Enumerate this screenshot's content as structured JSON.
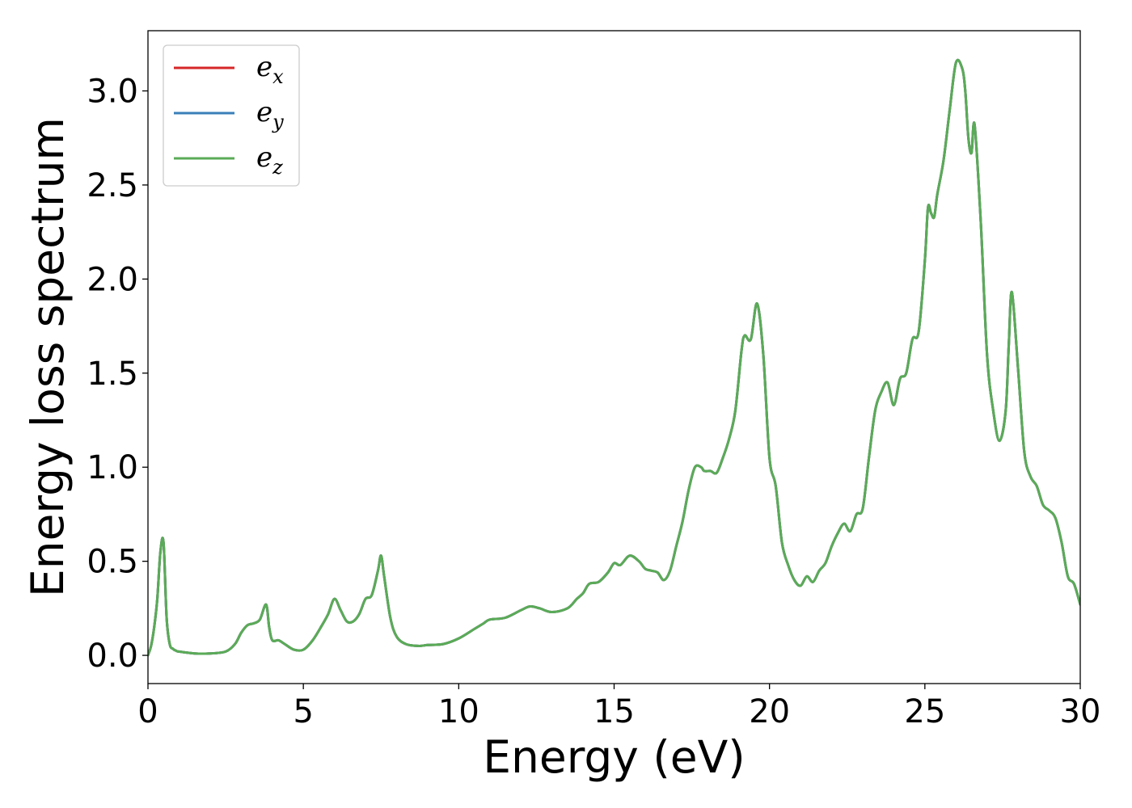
{
  "chart_data": {
    "type": "line",
    "xlabel": "Energy (eV)",
    "ylabel": "Energy loss spectrum",
    "xlim": [
      0,
      30
    ],
    "ylim": [
      -0.15,
      3.32
    ],
    "xticks": [
      0,
      5,
      10,
      15,
      20,
      25,
      30
    ],
    "xtick_labels": [
      "0",
      "5",
      "10",
      "15",
      "20",
      "25",
      "30"
    ],
    "yticks": [
      0.0,
      0.5,
      1.0,
      1.5,
      2.0,
      2.5,
      3.0
    ],
    "ytick_labels": [
      "0.0",
      "0.5",
      "1.0",
      "1.5",
      "2.0",
      "2.5",
      "3.0"
    ],
    "grid": false,
    "legend_position": "top-left",
    "series": [
      {
        "name": "e",
        "subscript": "x",
        "color": "#d62728",
        "x": [
          0,
          0.1,
          0.2,
          0.3,
          0.4,
          0.5,
          0.6,
          0.7,
          0.8,
          0.9,
          1.0,
          1.5,
          2.0,
          2.5,
          2.8,
          3.0,
          3.2,
          3.4,
          3.6,
          3.8,
          3.9,
          4.0,
          4.2,
          4.4,
          4.7,
          5.0,
          5.3,
          5.6,
          5.8,
          6.0,
          6.2,
          6.4,
          6.6,
          6.8,
          7.0,
          7.2,
          7.4,
          7.5,
          7.6,
          7.8,
          8.0,
          8.3,
          8.7,
          9.0,
          9.5,
          10.0,
          10.5,
          10.8,
          11.0,
          11.5,
          12.0,
          12.3,
          12.6,
          13.0,
          13.5,
          13.8,
          14.0,
          14.2,
          14.5,
          14.8,
          15.0,
          15.2,
          15.5,
          15.8,
          16.0,
          16.2,
          16.4,
          16.6,
          16.8,
          17.0,
          17.2,
          17.4,
          17.6,
          17.8,
          17.9,
          18.1,
          18.3,
          18.5,
          18.7,
          18.9,
          19.1,
          19.2,
          19.4,
          19.6,
          19.8,
          20.0,
          20.2,
          20.4,
          20.6,
          20.8,
          21.0,
          21.2,
          21.4,
          21.6,
          21.8,
          22.0,
          22.2,
          22.4,
          22.6,
          22.8,
          23.0,
          23.2,
          23.4,
          23.6,
          23.8,
          24.0,
          24.2,
          24.4,
          24.6,
          24.8,
          25.0,
          25.1,
          25.2,
          25.3,
          25.4,
          25.6,
          25.8,
          26.0,
          26.2,
          26.3,
          26.4,
          26.5,
          26.6,
          26.8,
          27.0,
          27.2,
          27.4,
          27.6,
          27.7,
          27.8,
          28.0,
          28.2,
          28.4,
          28.6,
          28.8,
          29.0,
          29.2,
          29.4,
          29.6,
          29.8,
          30.0
        ],
        "y": [
          0.0,
          0.05,
          0.15,
          0.3,
          0.55,
          0.6,
          0.2,
          0.06,
          0.035,
          0.025,
          0.02,
          0.01,
          0.01,
          0.02,
          0.06,
          0.12,
          0.16,
          0.17,
          0.19,
          0.27,
          0.15,
          0.08,
          0.08,
          0.06,
          0.03,
          0.03,
          0.08,
          0.16,
          0.22,
          0.3,
          0.24,
          0.18,
          0.18,
          0.22,
          0.3,
          0.32,
          0.45,
          0.53,
          0.42,
          0.2,
          0.1,
          0.06,
          0.05,
          0.055,
          0.06,
          0.09,
          0.14,
          0.17,
          0.19,
          0.2,
          0.24,
          0.26,
          0.25,
          0.23,
          0.25,
          0.3,
          0.33,
          0.38,
          0.39,
          0.44,
          0.49,
          0.48,
          0.53,
          0.5,
          0.46,
          0.45,
          0.44,
          0.4,
          0.45,
          0.58,
          0.71,
          0.88,
          1.0,
          1.0,
          0.98,
          0.98,
          0.97,
          1.05,
          1.15,
          1.3,
          1.62,
          1.7,
          1.68,
          1.87,
          1.6,
          1.05,
          0.9,
          0.6,
          0.48,
          0.4,
          0.37,
          0.42,
          0.39,
          0.45,
          0.49,
          0.58,
          0.65,
          0.7,
          0.66,
          0.75,
          0.78,
          1.05,
          1.3,
          1.4,
          1.45,
          1.33,
          1.47,
          1.5,
          1.68,
          1.72,
          2.1,
          2.38,
          2.35,
          2.33,
          2.45,
          2.63,
          2.9,
          3.15,
          3.12,
          3.0,
          2.75,
          2.67,
          2.82,
          2.3,
          1.6,
          1.3,
          1.14,
          1.3,
          1.65,
          1.93,
          1.52,
          1.08,
          0.95,
          0.9,
          0.8,
          0.77,
          0.73,
          0.6,
          0.42,
          0.38,
          0.27
        ]
      },
      {
        "name": "e",
        "subscript": "y",
        "color": "#3a7fb8",
        "x": [
          0,
          0.1,
          0.2,
          0.3,
          0.4,
          0.5,
          0.6,
          0.7,
          0.8,
          0.9,
          1.0,
          1.5,
          2.0,
          2.5,
          2.8,
          3.0,
          3.2,
          3.4,
          3.6,
          3.8,
          3.9,
          4.0,
          4.2,
          4.4,
          4.7,
          5.0,
          5.3,
          5.6,
          5.8,
          6.0,
          6.2,
          6.4,
          6.6,
          6.8,
          7.0,
          7.2,
          7.4,
          7.5,
          7.6,
          7.8,
          8.0,
          8.3,
          8.7,
          9.0,
          9.5,
          10.0,
          10.5,
          10.8,
          11.0,
          11.5,
          12.0,
          12.3,
          12.6,
          13.0,
          13.5,
          13.8,
          14.0,
          14.2,
          14.5,
          14.8,
          15.0,
          15.2,
          15.5,
          15.8,
          16.0,
          16.2,
          16.4,
          16.6,
          16.8,
          17.0,
          17.2,
          17.4,
          17.6,
          17.8,
          17.9,
          18.1,
          18.3,
          18.5,
          18.7,
          18.9,
          19.1,
          19.2,
          19.4,
          19.6,
          19.8,
          20.0,
          20.2,
          20.4,
          20.6,
          20.8,
          21.0,
          21.2,
          21.4,
          21.6,
          21.8,
          22.0,
          22.2,
          22.4,
          22.6,
          22.8,
          23.0,
          23.2,
          23.4,
          23.6,
          23.8,
          24.0,
          24.2,
          24.4,
          24.6,
          24.8,
          25.0,
          25.1,
          25.2,
          25.3,
          25.4,
          25.6,
          25.8,
          26.0,
          26.2,
          26.3,
          26.4,
          26.5,
          26.6,
          26.8,
          27.0,
          27.2,
          27.4,
          27.6,
          27.7,
          27.8,
          28.0,
          28.2,
          28.4,
          28.6,
          28.8,
          29.0,
          29.2,
          29.4,
          29.6,
          29.8,
          30.0
        ],
        "y": [
          0.0,
          0.05,
          0.15,
          0.3,
          0.55,
          0.6,
          0.2,
          0.06,
          0.035,
          0.025,
          0.02,
          0.01,
          0.01,
          0.02,
          0.06,
          0.12,
          0.16,
          0.17,
          0.19,
          0.27,
          0.15,
          0.08,
          0.08,
          0.06,
          0.03,
          0.03,
          0.08,
          0.16,
          0.22,
          0.3,
          0.24,
          0.18,
          0.18,
          0.22,
          0.3,
          0.32,
          0.45,
          0.53,
          0.42,
          0.2,
          0.1,
          0.06,
          0.05,
          0.055,
          0.06,
          0.09,
          0.14,
          0.17,
          0.19,
          0.2,
          0.24,
          0.26,
          0.25,
          0.23,
          0.25,
          0.3,
          0.33,
          0.38,
          0.39,
          0.44,
          0.49,
          0.48,
          0.53,
          0.5,
          0.46,
          0.45,
          0.44,
          0.4,
          0.45,
          0.58,
          0.71,
          0.88,
          1.0,
          1.0,
          0.98,
          0.98,
          0.97,
          1.05,
          1.15,
          1.3,
          1.62,
          1.7,
          1.68,
          1.87,
          1.6,
          1.05,
          0.9,
          0.6,
          0.48,
          0.4,
          0.37,
          0.42,
          0.39,
          0.45,
          0.49,
          0.58,
          0.65,
          0.7,
          0.66,
          0.75,
          0.78,
          1.05,
          1.3,
          1.4,
          1.45,
          1.33,
          1.47,
          1.5,
          1.68,
          1.72,
          2.1,
          2.38,
          2.35,
          2.33,
          2.45,
          2.63,
          2.9,
          3.15,
          3.12,
          3.0,
          2.75,
          2.67,
          2.82,
          2.3,
          1.6,
          1.3,
          1.14,
          1.3,
          1.65,
          1.93,
          1.52,
          1.08,
          0.95,
          0.9,
          0.8,
          0.77,
          0.73,
          0.6,
          0.42,
          0.38,
          0.27
        ]
      },
      {
        "name": "e",
        "subscript": "z",
        "color": "#5aab57",
        "x": [
          0,
          0.1,
          0.2,
          0.3,
          0.4,
          0.5,
          0.6,
          0.7,
          0.8,
          0.9,
          1.0,
          1.5,
          2.0,
          2.5,
          2.8,
          3.0,
          3.2,
          3.4,
          3.6,
          3.8,
          3.9,
          4.0,
          4.2,
          4.4,
          4.7,
          5.0,
          5.3,
          5.6,
          5.8,
          6.0,
          6.2,
          6.4,
          6.6,
          6.8,
          7.0,
          7.2,
          7.4,
          7.5,
          7.6,
          7.8,
          8.0,
          8.3,
          8.7,
          9.0,
          9.5,
          10.0,
          10.5,
          10.8,
          11.0,
          11.5,
          12.0,
          12.3,
          12.6,
          13.0,
          13.5,
          13.8,
          14.0,
          14.2,
          14.5,
          14.8,
          15.0,
          15.2,
          15.5,
          15.8,
          16.0,
          16.2,
          16.4,
          16.6,
          16.8,
          17.0,
          17.2,
          17.4,
          17.6,
          17.8,
          17.9,
          18.1,
          18.3,
          18.5,
          18.7,
          18.9,
          19.1,
          19.2,
          19.4,
          19.6,
          19.8,
          20.0,
          20.2,
          20.4,
          20.6,
          20.8,
          21.0,
          21.2,
          21.4,
          21.6,
          21.8,
          22.0,
          22.2,
          22.4,
          22.6,
          22.8,
          23.0,
          23.2,
          23.4,
          23.6,
          23.8,
          24.0,
          24.2,
          24.4,
          24.6,
          24.8,
          25.0,
          25.1,
          25.2,
          25.3,
          25.4,
          25.6,
          25.8,
          26.0,
          26.2,
          26.3,
          26.4,
          26.5,
          26.6,
          26.8,
          27.0,
          27.2,
          27.4,
          27.6,
          27.7,
          27.8,
          28.0,
          28.2,
          28.4,
          28.6,
          28.8,
          29.0,
          29.2,
          29.4,
          29.6,
          29.8,
          30.0
        ],
        "y": [
          0.0,
          0.05,
          0.15,
          0.3,
          0.55,
          0.6,
          0.2,
          0.06,
          0.035,
          0.025,
          0.02,
          0.01,
          0.01,
          0.02,
          0.06,
          0.12,
          0.16,
          0.17,
          0.19,
          0.27,
          0.15,
          0.08,
          0.08,
          0.06,
          0.03,
          0.03,
          0.08,
          0.16,
          0.22,
          0.3,
          0.24,
          0.18,
          0.18,
          0.22,
          0.3,
          0.32,
          0.45,
          0.53,
          0.42,
          0.2,
          0.1,
          0.06,
          0.05,
          0.055,
          0.06,
          0.09,
          0.14,
          0.17,
          0.19,
          0.2,
          0.24,
          0.26,
          0.25,
          0.23,
          0.25,
          0.3,
          0.33,
          0.38,
          0.39,
          0.44,
          0.49,
          0.48,
          0.53,
          0.5,
          0.46,
          0.45,
          0.44,
          0.4,
          0.45,
          0.58,
          0.71,
          0.88,
          1.0,
          1.0,
          0.98,
          0.98,
          0.97,
          1.05,
          1.15,
          1.3,
          1.62,
          1.7,
          1.68,
          1.87,
          1.6,
          1.05,
          0.9,
          0.6,
          0.48,
          0.4,
          0.37,
          0.42,
          0.39,
          0.45,
          0.49,
          0.58,
          0.65,
          0.7,
          0.66,
          0.75,
          0.78,
          1.05,
          1.3,
          1.4,
          1.45,
          1.33,
          1.47,
          1.5,
          1.68,
          1.72,
          2.1,
          2.38,
          2.35,
          2.33,
          2.45,
          2.63,
          2.9,
          3.15,
          3.12,
          3.0,
          2.75,
          2.67,
          2.82,
          2.3,
          1.6,
          1.3,
          1.14,
          1.3,
          1.65,
          1.93,
          1.52,
          1.08,
          0.95,
          0.9,
          0.8,
          0.77,
          0.73,
          0.6,
          0.42,
          0.38,
          0.27
        ]
      }
    ]
  }
}
